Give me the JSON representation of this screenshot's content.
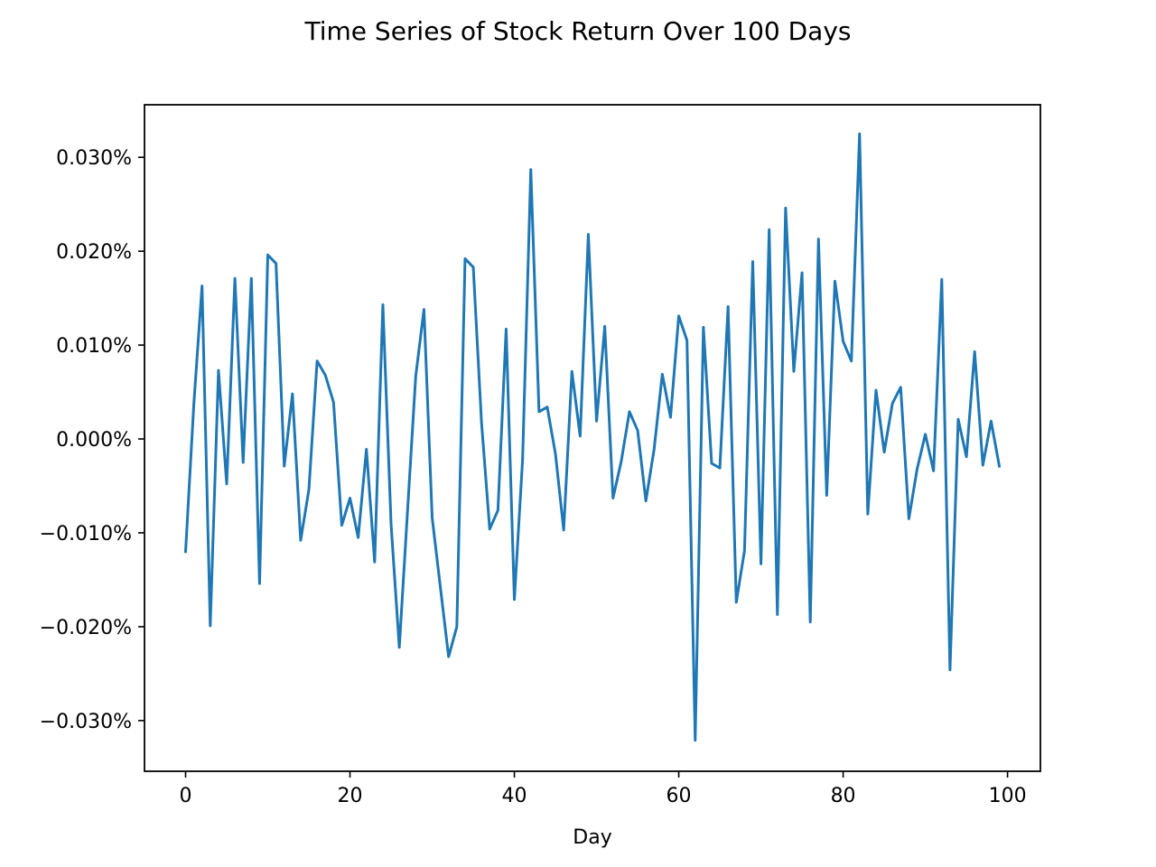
{
  "chart_data": {
    "type": "line",
    "title": "Time Series of Stock Return Over 100 Days",
    "xlabel": "Day",
    "ylabel": "",
    "xlim": [
      -5,
      104
    ],
    "ylim": [
      -0.000354,
      0.000356
    ],
    "x_ticks": [
      {
        "value": 0,
        "label": "0"
      },
      {
        "value": 20,
        "label": "20"
      },
      {
        "value": 40,
        "label": "40"
      },
      {
        "value": 60,
        "label": "60"
      },
      {
        "value": 80,
        "label": "80"
      },
      {
        "value": 100,
        "label": "100"
      }
    ],
    "y_ticks": [
      {
        "value": -0.0003,
        "label": "−0.030%"
      },
      {
        "value": -0.0002,
        "label": "−0.020%"
      },
      {
        "value": -0.0001,
        "label": "−0.010%"
      },
      {
        "value": 0.0,
        "label": "0.000%"
      },
      {
        "value": 0.0001,
        "label": "0.010%"
      },
      {
        "value": 0.0002,
        "label": "0.020%"
      },
      {
        "value": 0.0003,
        "label": "0.030%"
      }
    ],
    "grid": false,
    "line_color": "#1f77b4",
    "series": [
      {
        "x": [
          0,
          1,
          2,
          3,
          4,
          5,
          6,
          7,
          8,
          9,
          10,
          11,
          12,
          13,
          14,
          15,
          16,
          17,
          18,
          19,
          20,
          21,
          22,
          23,
          24,
          25,
          26,
          27,
          28,
          29,
          30,
          31,
          32,
          33,
          34,
          35,
          36,
          37,
          38,
          39,
          40,
          41,
          42,
          43,
          44,
          45,
          46,
          47,
          48,
          49,
          50,
          51,
          52,
          53,
          54,
          55,
          56,
          57,
          58,
          59,
          60,
          61,
          62,
          63,
          64,
          65,
          66,
          67,
          68,
          69,
          70,
          71,
          72,
          73,
          74,
          75,
          76,
          77,
          78,
          79,
          80,
          81,
          82,
          83,
          84,
          85,
          86,
          87,
          88,
          89,
          90,
          91,
          92,
          93,
          94,
          95,
          96,
          97,
          98,
          99
        ],
        "values": [
          -0.00012,
          3.7e-05,
          0.000163,
          -0.000199,
          7.3e-05,
          -4.8e-05,
          0.000171,
          -2.5e-05,
          0.000171,
          -0.000154,
          0.000196,
          0.000187,
          -2.9e-05,
          4.8e-05,
          -0.000108,
          -5.4e-05,
          8.3e-05,
          6.8e-05,
          3.9e-05,
          -9.2e-05,
          -6.3e-05,
          -0.000105,
          -1.1e-05,
          -0.000131,
          0.000143,
          -9.1e-05,
          -0.000222,
          -7.7e-05,
          6.7e-05,
          0.000138,
          -8.4e-05,
          -0.000158,
          -0.000232,
          -0.0002,
          0.000192,
          0.000183,
          1.8e-05,
          -9.6e-05,
          -7.6e-05,
          0.000117,
          -0.000171,
          -2.2e-05,
          0.000287,
          2.9e-05,
          3.4e-05,
          -1.6e-05,
          -9.7e-05,
          7.2e-05,
          3e-06,
          0.000218,
          1.9e-05,
          0.00012,
          -6.3e-05,
          -2.4e-05,
          2.9e-05,
          9e-06,
          -6.6e-05,
          -1.1e-05,
          6.9e-05,
          2.3e-05,
          0.000131,
          0.000105,
          -0.000321,
          0.000119,
          -2.6e-05,
          -3.1e-05,
          0.000141,
          -0.000174,
          -0.000119,
          0.000189,
          -0.000133,
          0.000223,
          -0.000187,
          0.000246,
          7.2e-05,
          0.000177,
          -0.000195,
          0.000213,
          -6e-05,
          0.000168,
          0.000104,
          8.3e-05,
          0.000325,
          -8e-05,
          5.2e-05,
          -1.4e-05,
          3.8e-05,
          5.5e-05,
          -8.5e-05,
          -3.2e-05,
          5e-06,
          -3.4e-05,
          0.00017,
          -0.000246,
          2.1e-05,
          -1.9e-05,
          9.3e-05,
          -2.8e-05,
          1.9e-05,
          -2.9e-05
        ]
      }
    ]
  }
}
